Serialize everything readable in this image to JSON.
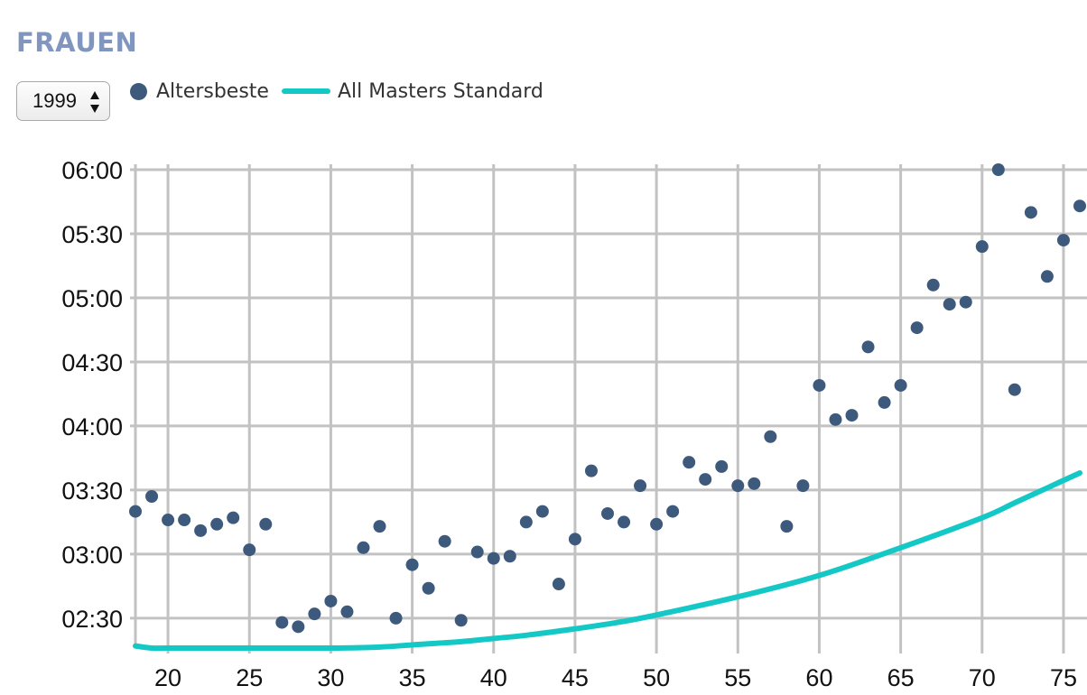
{
  "header": {
    "title": "FRAUEN"
  },
  "year_select": {
    "value": "1999"
  },
  "colors": {
    "points": "#3d5a7d",
    "standard_line": "#14c8c6",
    "grid": "#c2c2c2",
    "title": "#8096bf"
  },
  "icons": {
    "select_arrows": "up-down-chevron-icon"
  },
  "chart_data": {
    "type": "scatter",
    "grid": true,
    "legend_position": "top-left",
    "x_ticks": [
      20,
      25,
      30,
      35,
      40,
      45,
      50,
      55,
      60,
      65,
      70,
      75
    ],
    "y_ticks": [
      "02:30",
      "03:00",
      "03:30",
      "04:00",
      "04:30",
      "05:00",
      "05:30",
      "06:00"
    ],
    "xlim": [
      18,
      76
    ],
    "ylim": [
      "02:16",
      "06:00"
    ],
    "series": [
      {
        "name": "Altersbeste",
        "kind": "scatter",
        "x": [
          18,
          19,
          20,
          21,
          22,
          23,
          24,
          25,
          26,
          27,
          28,
          29,
          30,
          31,
          32,
          33,
          34,
          35,
          36,
          37,
          38,
          39,
          40,
          41,
          42,
          43,
          44,
          45,
          46,
          47,
          48,
          49,
          50,
          51,
          52,
          53,
          54,
          55,
          56,
          57,
          58,
          59,
          60,
          61,
          62,
          63,
          64,
          65,
          66,
          67,
          68,
          69,
          70,
          71,
          72,
          73,
          74,
          75,
          76
        ],
        "y": [
          "03:20",
          "03:27",
          "03:16",
          "03:16",
          "03:11",
          "03:14",
          "03:17",
          "03:02",
          "03:14",
          "02:28",
          "02:26",
          "02:32",
          "02:38",
          "02:33",
          "03:03",
          "03:13",
          "02:30",
          "02:55",
          "02:44",
          "03:06",
          "02:29",
          "03:01",
          "02:58",
          "02:59",
          "03:15",
          "03:20",
          "02:46",
          "03:07",
          "03:39",
          "03:19",
          "03:15",
          "03:32",
          "03:14",
          "03:20",
          "03:43",
          "03:35",
          "03:41",
          "03:32",
          "03:33",
          "03:55",
          "03:13",
          "03:32",
          "04:19",
          "04:03",
          "04:05",
          "04:37",
          "04:11",
          "04:19",
          "04:46",
          "05:06",
          "04:57",
          "04:58",
          "05:24",
          "06:00",
          "04:17",
          "05:40",
          "05:10",
          "05:27",
          "05:43"
        ]
      },
      {
        "name": "All Masters Standard",
        "kind": "line",
        "x": [
          18,
          19,
          20,
          25,
          30,
          33,
          35,
          38,
          40,
          42,
          45,
          48,
          50,
          55,
          60,
          65,
          70,
          72,
          74,
          76
        ],
        "y": [
          "02:17",
          "02:16",
          "02:16",
          "02:16",
          "02:16",
          "02:16.5",
          "02:17.5",
          "02:19",
          "02:20.5",
          "02:22",
          "02:25",
          "02:28.5",
          "02:31.5",
          "02:40",
          "02:50",
          "03:03",
          "03:17",
          "03:24",
          "03:31",
          "03:38"
        ]
      }
    ]
  }
}
